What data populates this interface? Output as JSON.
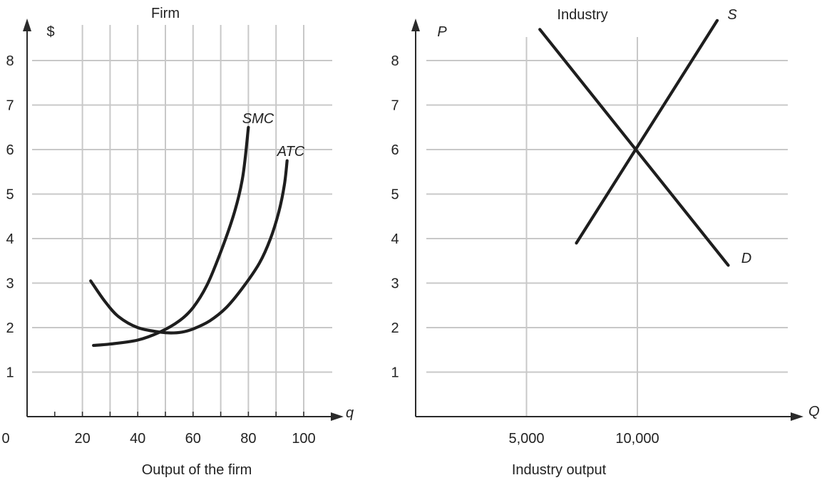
{
  "chart_data": [
    {
      "type": "line",
      "title": "Firm",
      "ylabel": "$",
      "xlabel": "Output of the firm",
      "x_axis_symbol": "q",
      "origin_label": "0",
      "xlim": [
        0,
        100
      ],
      "ylim": [
        0,
        8
      ],
      "x_gridlines": [
        20,
        30,
        40,
        50,
        60,
        70,
        80,
        90,
        100
      ],
      "x_ticks": [
        10,
        20,
        30,
        40,
        50,
        60,
        70,
        80,
        90,
        100
      ],
      "x_tick_labels": [
        {
          "value": 20,
          "label": "20"
        },
        {
          "value": 40,
          "label": "40"
        },
        {
          "value": 60,
          "label": "60"
        },
        {
          "value": 80,
          "label": "80"
        },
        {
          "value": 100,
          "label": "100"
        }
      ],
      "y_tick_labels": [
        {
          "value": 1,
          "label": "1"
        },
        {
          "value": 2,
          "label": "2"
        },
        {
          "value": 3,
          "label": "3"
        },
        {
          "value": 4,
          "label": "4"
        },
        {
          "value": 5,
          "label": "5"
        },
        {
          "value": 6,
          "label": "6"
        },
        {
          "value": 7,
          "label": "7"
        },
        {
          "value": 8,
          "label": "8"
        }
      ],
      "grid": true,
      "series": [
        {
          "name": "SMC",
          "x": [
            24,
            30,
            40,
            48,
            55,
            60,
            65,
            70,
            75,
            78,
            80
          ],
          "y": [
            1.6,
            1.63,
            1.72,
            1.9,
            2.15,
            2.45,
            2.95,
            3.7,
            4.6,
            5.4,
            6.5
          ]
        },
        {
          "name": "ATC",
          "x": [
            23,
            28,
            33,
            40,
            48,
            52,
            56,
            60,
            66,
            72,
            78,
            84,
            88,
            91,
            93,
            94
          ],
          "y": [
            3.05,
            2.6,
            2.25,
            2.0,
            1.9,
            1.88,
            1.9,
            1.97,
            2.15,
            2.45,
            2.9,
            3.45,
            4.0,
            4.6,
            5.2,
            5.75
          ]
        }
      ]
    },
    {
      "type": "line",
      "title": "Industry",
      "ylabel": "P",
      "xlabel": "Industry output",
      "x_axis_symbol": "Q",
      "xlim": [
        0,
        15000
      ],
      "ylim": [
        0,
        8
      ],
      "x_gridlines": [
        5000,
        10000
      ],
      "x_tick_labels": [
        {
          "value": 5000,
          "label": "5,000"
        },
        {
          "value": 10000,
          "label": "10,000"
        }
      ],
      "y_tick_labels": [
        {
          "value": 1,
          "label": "1"
        },
        {
          "value": 2,
          "label": "2"
        },
        {
          "value": 3,
          "label": "3"
        },
        {
          "value": 4,
          "label": "4"
        },
        {
          "value": 5,
          "label": "5"
        },
        {
          "value": 6,
          "label": "6"
        },
        {
          "value": 7,
          "label": "7"
        },
        {
          "value": 8,
          "label": "8"
        }
      ],
      "grid": true,
      "series": [
        {
          "name": "S",
          "x": [
            7250,
            13600
          ],
          "y": [
            3.9,
            8.9
          ]
        },
        {
          "name": "D",
          "x": [
            5600,
            14100
          ],
          "y": [
            8.7,
            3.4
          ]
        }
      ]
    }
  ]
}
